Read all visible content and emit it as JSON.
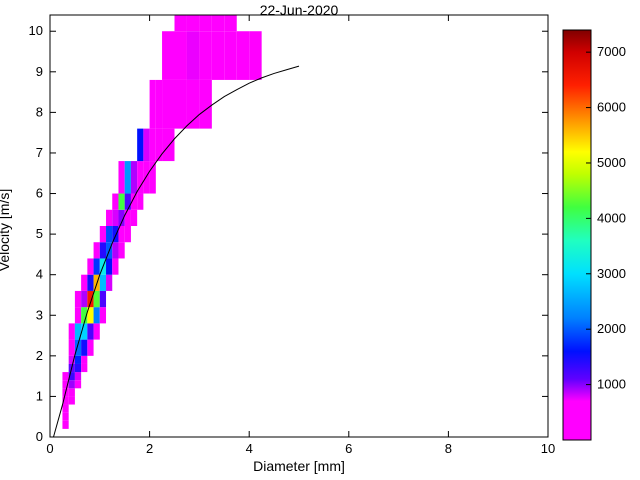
{
  "figure": {
    "background": "#ffffff",
    "frame_color": "#000000"
  },
  "chart_data": {
    "type": "heatmap",
    "title": "22-Jun-2020",
    "xlabel": "Diameter [mm]",
    "ylabel": "Velocity [m/s]",
    "xlim": [
      0,
      10
    ],
    "ylim": [
      0,
      10.4
    ],
    "xticks": [
      0,
      2,
      4,
      6,
      8,
      10
    ],
    "yticks": [
      0,
      1,
      2,
      3,
      4,
      5,
      6,
      7,
      8,
      9,
      10
    ],
    "grid": false,
    "curve": {
      "name": "terminal-velocity-curve",
      "color": "#000000",
      "points": [
        [
          0.07,
          0.0
        ],
        [
          0.25,
          0.79
        ],
        [
          0.5,
          2.02
        ],
        [
          0.75,
          3.08
        ],
        [
          1.0,
          4.0
        ],
        [
          1.25,
          4.78
        ],
        [
          1.5,
          5.46
        ],
        [
          1.75,
          6.05
        ],
        [
          2.0,
          6.55
        ],
        [
          2.25,
          6.98
        ],
        [
          2.5,
          7.35
        ],
        [
          2.75,
          7.67
        ],
        [
          3.0,
          7.95
        ],
        [
          3.25,
          8.18
        ],
        [
          3.5,
          8.39
        ],
        [
          3.75,
          8.56
        ],
        [
          4.0,
          8.72
        ],
        [
          4.25,
          8.85
        ],
        [
          4.5,
          8.96
        ],
        [
          4.75,
          9.05
        ],
        [
          5.0,
          9.14
        ]
      ]
    },
    "colorbar": {
      "vmin": 0,
      "vmax": 7400,
      "ticks": [
        1000,
        2000,
        3000,
        4000,
        5000,
        6000,
        7000
      ],
      "position": "right"
    },
    "colormap": {
      "stops": [
        [
          0,
          "#ff00ff"
        ],
        [
          700,
          "#ff00ff"
        ],
        [
          1100,
          "#6000ff"
        ],
        [
          1600,
          "#0010ff"
        ],
        [
          2200,
          "#0080ff"
        ],
        [
          3000,
          "#00e0ff"
        ],
        [
          3600,
          "#20ffc0"
        ],
        [
          4200,
          "#40ff40"
        ],
        [
          4800,
          "#c0ff00"
        ],
        [
          5200,
          "#ffff00"
        ],
        [
          5800,
          "#ff9000"
        ],
        [
          6400,
          "#ff2000"
        ],
        [
          7000,
          "#d00000"
        ],
        [
          7400,
          "#800000"
        ]
      ]
    },
    "cells_format": [
      "d_min_mm",
      "d_max_mm",
      "v_min_ms",
      "v_max_ms",
      "count"
    ],
    "cells": [
      [
        0.25,
        0.375,
        0.2,
        0.4,
        200
      ],
      [
        0.25,
        0.375,
        0.4,
        0.6,
        350
      ],
      [
        0.25,
        0.375,
        0.6,
        0.8,
        500
      ],
      [
        0.25,
        0.375,
        0.8,
        1.0,
        600
      ],
      [
        0.25,
        0.375,
        1.0,
        1.2,
        550
      ],
      [
        0.25,
        0.375,
        1.2,
        1.4,
        400
      ],
      [
        0.25,
        0.375,
        1.4,
        1.6,
        250
      ],
      [
        0.375,
        0.5,
        0.8,
        1.0,
        450
      ],
      [
        0.375,
        0.5,
        1.0,
        1.2,
        700
      ],
      [
        0.375,
        0.5,
        1.2,
        1.4,
        950
      ],
      [
        0.375,
        0.5,
        1.4,
        1.6,
        1300
      ],
      [
        0.375,
        0.5,
        1.6,
        1.8,
        1100
      ],
      [
        0.375,
        0.5,
        1.8,
        2.0,
        800
      ],
      [
        0.375,
        0.5,
        2.0,
        2.4,
        500
      ],
      [
        0.375,
        0.5,
        2.4,
        2.8,
        300
      ],
      [
        0.5,
        0.625,
        1.2,
        1.4,
        500
      ],
      [
        0.5,
        0.625,
        1.4,
        1.6,
        800
      ],
      [
        0.5,
        0.625,
        1.6,
        1.8,
        1400
      ],
      [
        0.5,
        0.625,
        1.8,
        2.0,
        1700
      ],
      [
        0.5,
        0.625,
        2.0,
        2.4,
        2100
      ],
      [
        0.5,
        0.625,
        2.4,
        2.8,
        2700
      ],
      [
        0.5,
        0.625,
        2.8,
        3.2,
        700
      ],
      [
        0.5,
        0.625,
        3.2,
        3.6,
        300
      ],
      [
        0.625,
        0.75,
        1.6,
        1.8,
        400
      ],
      [
        0.625,
        0.75,
        1.8,
        2.0,
        600
      ],
      [
        0.625,
        0.75,
        2.0,
        2.4,
        1500
      ],
      [
        0.625,
        0.75,
        2.4,
        2.8,
        2900
      ],
      [
        0.625,
        0.75,
        2.8,
        3.2,
        4200
      ],
      [
        0.625,
        0.75,
        3.2,
        3.6,
        900
      ],
      [
        0.625,
        0.75,
        3.6,
        4.0,
        300
      ],
      [
        0.75,
        0.875,
        2.0,
        2.4,
        500
      ],
      [
        0.75,
        0.875,
        2.4,
        2.8,
        1200
      ],
      [
        0.75,
        0.875,
        2.8,
        3.2,
        5200
      ],
      [
        0.75,
        0.875,
        3.2,
        3.6,
        6500
      ],
      [
        0.75,
        0.875,
        3.6,
        4.0,
        1500
      ],
      [
        0.75,
        0.875,
        4.0,
        4.4,
        400
      ],
      [
        0.875,
        1.0,
        2.4,
        2.8,
        600
      ],
      [
        0.875,
        1.0,
        2.8,
        3.2,
        2200
      ],
      [
        0.875,
        1.0,
        3.2,
        3.6,
        4300
      ],
      [
        0.875,
        1.0,
        3.6,
        4.0,
        5600
      ],
      [
        0.875,
        1.0,
        4.0,
        4.4,
        1800
      ],
      [
        0.875,
        1.0,
        4.4,
        4.8,
        500
      ],
      [
        1.0,
        1.125,
        2.8,
        3.2,
        400
      ],
      [
        1.0,
        1.125,
        3.2,
        3.6,
        1200
      ],
      [
        1.0,
        1.125,
        3.6,
        4.0,
        2700
      ],
      [
        1.0,
        1.125,
        4.0,
        4.4,
        3200
      ],
      [
        1.0,
        1.125,
        4.4,
        4.8,
        1400
      ],
      [
        1.0,
        1.125,
        4.8,
        5.2,
        600
      ],
      [
        1.125,
        1.25,
        3.6,
        4.0,
        800
      ],
      [
        1.125,
        1.25,
        4.0,
        4.4,
        1600
      ],
      [
        1.125,
        1.25,
        4.4,
        4.8,
        2000
      ],
      [
        1.125,
        1.25,
        4.8,
        5.2,
        1900
      ],
      [
        1.125,
        1.25,
        5.2,
        5.6,
        700
      ],
      [
        1.25,
        1.375,
        4.0,
        4.4,
        500
      ],
      [
        1.25,
        1.375,
        4.4,
        4.8,
        900
      ],
      [
        1.25,
        1.375,
        4.8,
        5.2,
        1500
      ],
      [
        1.25,
        1.375,
        5.2,
        5.6,
        800
      ],
      [
        1.25,
        1.375,
        5.6,
        6.0,
        400
      ],
      [
        1.375,
        1.5,
        4.4,
        4.8,
        400
      ],
      [
        1.375,
        1.5,
        4.8,
        5.2,
        700
      ],
      [
        1.375,
        1.5,
        5.2,
        5.6,
        1000
      ],
      [
        1.375,
        1.5,
        5.6,
        6.0,
        4200
      ],
      [
        1.375,
        1.5,
        6.0,
        6.8,
        500
      ],
      [
        1.5,
        1.625,
        4.8,
        5.2,
        300
      ],
      [
        1.5,
        1.625,
        5.2,
        5.6,
        600
      ],
      [
        1.5,
        1.625,
        5.6,
        6.0,
        1200
      ],
      [
        1.5,
        1.625,
        6.0,
        6.8,
        2400
      ],
      [
        1.625,
        1.75,
        5.2,
        5.6,
        300
      ],
      [
        1.625,
        1.75,
        5.6,
        6.0,
        600
      ],
      [
        1.625,
        1.75,
        6.0,
        6.8,
        900
      ],
      [
        1.75,
        1.875,
        5.6,
        6.0,
        350
      ],
      [
        1.75,
        1.875,
        6.0,
        6.8,
        700
      ],
      [
        1.75,
        1.875,
        6.8,
        7.6,
        1600
      ],
      [
        1.875,
        2.0,
        6.0,
        6.8,
        500
      ],
      [
        1.875,
        2.0,
        6.8,
        7.6,
        800
      ],
      [
        2.0,
        2.125,
        6.0,
        6.8,
        300
      ],
      [
        2.0,
        2.125,
        6.8,
        7.6,
        600
      ],
      [
        2.0,
        2.125,
        7.6,
        8.8,
        350
      ],
      [
        2.125,
        2.25,
        6.8,
        7.6,
        500
      ],
      [
        2.125,
        2.25,
        7.6,
        8.8,
        400
      ],
      [
        2.25,
        2.5,
        6.8,
        7.6,
        450
      ],
      [
        2.25,
        2.5,
        7.6,
        8.8,
        600
      ],
      [
        2.25,
        2.5,
        8.8,
        10.0,
        400
      ],
      [
        2.5,
        2.75,
        7.6,
        8.8,
        550
      ],
      [
        2.5,
        2.75,
        8.8,
        10.0,
        700
      ],
      [
        2.5,
        2.75,
        10.0,
        10.4,
        500
      ],
      [
        2.75,
        3.0,
        7.6,
        8.8,
        500
      ],
      [
        2.75,
        3.0,
        8.8,
        10.0,
        750
      ],
      [
        2.75,
        3.0,
        10.0,
        10.4,
        600
      ],
      [
        3.0,
        3.25,
        7.6,
        8.8,
        400
      ],
      [
        3.0,
        3.25,
        8.8,
        10.0,
        650
      ],
      [
        3.0,
        3.25,
        10.0,
        10.4,
        500
      ],
      [
        3.25,
        3.5,
        8.8,
        10.0,
        550
      ],
      [
        3.25,
        3.5,
        10.0,
        10.4,
        400
      ],
      [
        3.5,
        3.75,
        8.8,
        10.0,
        450
      ],
      [
        3.5,
        3.75,
        10.0,
        10.4,
        350
      ],
      [
        3.75,
        4.0,
        8.8,
        10.0,
        400
      ],
      [
        4.0,
        4.25,
        8.8,
        10.0,
        300
      ]
    ]
  }
}
